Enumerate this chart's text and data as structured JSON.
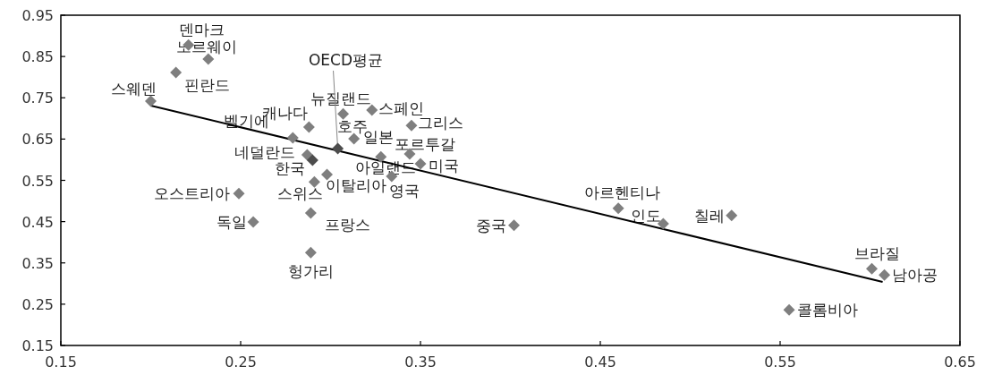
{
  "chart_data": {
    "type": "scatter",
    "xlim": [
      0.15,
      0.65
    ],
    "ylim": [
      0.15,
      0.95
    ],
    "xticks": [
      0.15,
      0.25,
      0.35,
      0.45,
      0.55,
      0.65
    ],
    "yticks": [
      0.15,
      0.25,
      0.35,
      0.45,
      0.55,
      0.65,
      0.75,
      0.85,
      0.95
    ],
    "grid": false,
    "series": [
      {
        "marker": "diamond",
        "x": [
          0.221,
          0.232,
          0.214,
          0.2,
          0.288,
          0.279,
          0.307,
          0.323,
          0.345,
          0.313,
          0.287,
          0.29,
          0.298,
          0.291,
          0.328,
          0.344,
          0.35,
          0.334,
          0.249,
          0.257,
          0.289,
          0.289,
          0.402,
          0.46,
          0.485,
          0.523,
          0.601,
          0.608,
          0.555,
          0.304
        ],
        "values": [
          0.878,
          0.844,
          0.811,
          0.742,
          0.679,
          0.653,
          0.711,
          0.72,
          0.683,
          0.651,
          0.612,
          0.599,
          0.564,
          0.546,
          0.607,
          0.614,
          0.59,
          0.56,
          0.518,
          0.449,
          0.471,
          0.375,
          0.441,
          0.482,
          0.445,
          0.465,
          0.336,
          0.321,
          0.236,
          0.627
        ],
        "colors": [
          "#7f7f7f",
          "#7f7f7f",
          "#7f7f7f",
          "#7f7f7f",
          "#7f7f7f",
          "#7f7f7f",
          "#7f7f7f",
          "#7f7f7f",
          "#7f7f7f",
          "#7f7f7f",
          "#7f7f7f",
          "#4d4d4d",
          "#7f7f7f",
          "#7f7f7f",
          "#7f7f7f",
          "#7f7f7f",
          "#7f7f7f",
          "#7f7f7f",
          "#7f7f7f",
          "#7f7f7f",
          "#7f7f7f",
          "#7f7f7f",
          "#7f7f7f",
          "#7f7f7f",
          "#7f7f7f",
          "#7f7f7f",
          "#7f7f7f",
          "#7f7f7f",
          "#7f7f7f",
          "#4d4d4d"
        ]
      },
      {
        "type": "line",
        "x": [
          0.2,
          0.607
        ],
        "values": [
          0.731,
          0.304
        ],
        "color": "#000000"
      }
    ],
    "annotations": [
      {
        "text": "덴마크",
        "x": 0.221,
        "y": 0.878
      },
      {
        "text": "노르웨이",
        "x": 0.232,
        "y": 0.844
      },
      {
        "text": "핀란드",
        "x": 0.214,
        "y": 0.811
      },
      {
        "text": "스웨덴",
        "x": 0.2,
        "y": 0.742
      },
      {
        "text": "캐나다",
        "x": 0.288,
        "y": 0.679
      },
      {
        "text": "벨기에",
        "x": 0.279,
        "y": 0.653
      },
      {
        "text": "뉴질랜드",
        "x": 0.307,
        "y": 0.711
      },
      {
        "text": "스페인",
        "x": 0.323,
        "y": 0.72
      },
      {
        "text": "그리스",
        "x": 0.345,
        "y": 0.683
      },
      {
        "text": "호주",
        "x": 0.313,
        "y": 0.651
      },
      {
        "text": "일본",
        "x": 0.313,
        "y": 0.651
      },
      {
        "text": "네덜란드",
        "x": 0.287,
        "y": 0.612
      },
      {
        "text": "한국",
        "x": 0.29,
        "y": 0.599
      },
      {
        "text": "이탈리아",
        "x": 0.298,
        "y": 0.564
      },
      {
        "text": "스위스",
        "x": 0.291,
        "y": 0.546
      },
      {
        "text": "아일랜드",
        "x": 0.328,
        "y": 0.607
      },
      {
        "text": "포르투갈",
        "x": 0.344,
        "y": 0.614
      },
      {
        "text": "미국",
        "x": 0.35,
        "y": 0.59
      },
      {
        "text": "영국",
        "x": 0.334,
        "y": 0.56
      },
      {
        "text": "오스트리아",
        "x": 0.249,
        "y": 0.518
      },
      {
        "text": "독일",
        "x": 0.257,
        "y": 0.449
      },
      {
        "text": "프랑스",
        "x": 0.289,
        "y": 0.471
      },
      {
        "text": "헝가리",
        "x": 0.289,
        "y": 0.375
      },
      {
        "text": "중국",
        "x": 0.402,
        "y": 0.441
      },
      {
        "text": "아르헨티나",
        "x": 0.46,
        "y": 0.482
      },
      {
        "text": "인도",
        "x": 0.485,
        "y": 0.445
      },
      {
        "text": "칠레",
        "x": 0.523,
        "y": 0.465
      },
      {
        "text": "브라질",
        "x": 0.601,
        "y": 0.336
      },
      {
        "text": "남아공",
        "x": 0.608,
        "y": 0.321
      },
      {
        "text": "콜롬비아",
        "x": 0.555,
        "y": 0.236
      },
      {
        "text": "OECD평균",
        "x": 0.304,
        "y": 0.627
      }
    ]
  }
}
